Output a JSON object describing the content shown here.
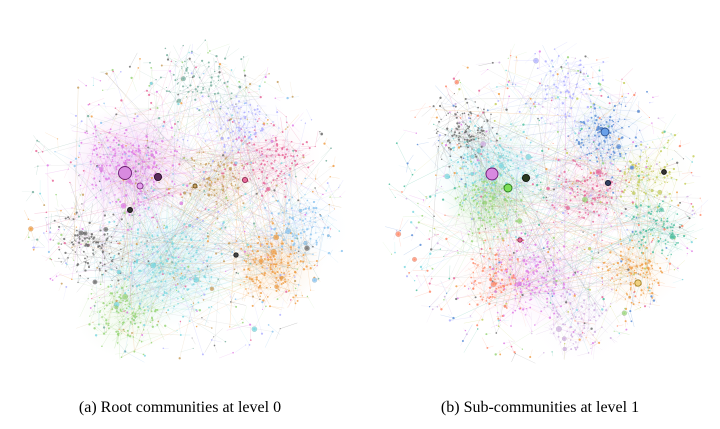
{
  "figure": {
    "panels": [
      {
        "id": "a",
        "caption": "(a) Root communities at level 0",
        "community_colors": [
          "#e07de6",
          "#7fd8e0",
          "#f0a04a",
          "#9ad67a",
          "#6f6f6f",
          "#8ec6f0",
          "#e86a9a",
          "#c8a060",
          "#b0b0ff",
          "#7ab0a0"
        ],
        "hub_fill": "#d88ae0"
      },
      {
        "id": "b",
        "caption": "(b) Sub-communities at level 1",
        "community_colors": [
          "#7fd8e0",
          "#e07de6",
          "#9ad67a",
          "#f0a04a",
          "#6f6f6f",
          "#5d8fd8",
          "#e86a9a",
          "#c8d060",
          "#b0b0ff",
          "#ff8a6a",
          "#50c0a0",
          "#d0b0e0"
        ],
        "hub_fill": "#d88ae0",
        "secondary_hub_fill": "#7ee05a"
      }
    ]
  }
}
